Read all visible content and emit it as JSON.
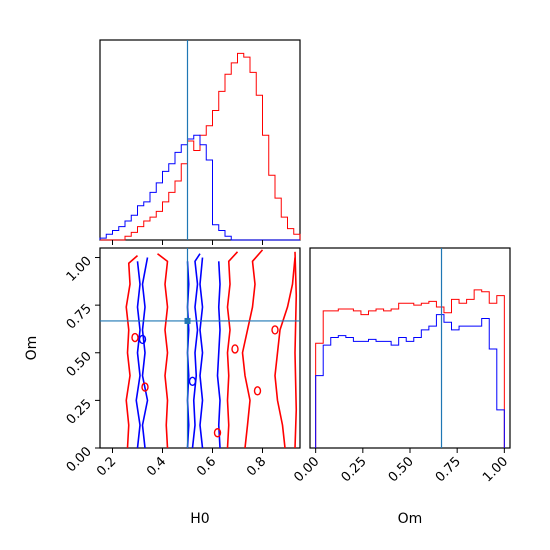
{
  "chart_data": {
    "type": "corner",
    "truth": {
      "H0": 0.5,
      "Om": 0.667
    },
    "colors": {
      "series_a": "#ff0000",
      "series_b": "#0000ff",
      "truth": "#1f77b4"
    },
    "h0_hist": {
      "xlim": [
        0.15,
        0.95
      ],
      "bin_edges": [
        0.15,
        0.175,
        0.2,
        0.225,
        0.25,
        0.275,
        0.3,
        0.325,
        0.35,
        0.375,
        0.4,
        0.425,
        0.45,
        0.475,
        0.5,
        0.525,
        0.55,
        0.575,
        0.6,
        0.625,
        0.65,
        0.675,
        0.7,
        0.725,
        0.75,
        0.775,
        0.8,
        0.825,
        0.85,
        0.875,
        0.9,
        0.925,
        0.95
      ],
      "series": [
        {
          "key": "a",
          "values": [
            0,
            0,
            0,
            0,
            0.02,
            0.04,
            0.07,
            0.1,
            0.12,
            0.15,
            0.2,
            0.25,
            0.31,
            0.4,
            0.52,
            0.47,
            0.55,
            0.6,
            0.68,
            0.78,
            0.87,
            0.93,
            0.98,
            0.96,
            0.88,
            0.76,
            0.55,
            0.34,
            0.22,
            0.12,
            0.06,
            0.03
          ]
        },
        {
          "key": "b",
          "values": [
            0.01,
            0.03,
            0.05,
            0.07,
            0.1,
            0.13,
            0.18,
            0.2,
            0.25,
            0.3,
            0.36,
            0.4,
            0.46,
            0.5,
            0.53,
            0.55,
            0.5,
            0.42,
            0.08,
            0.05,
            0.02,
            0,
            0,
            0,
            0,
            0,
            0,
            0,
            0,
            0,
            0,
            0
          ]
        }
      ]
    },
    "om_hist": {
      "xlim": [
        -0.03,
        1.03
      ],
      "xticks": [
        "0.00",
        "0.25",
        "0.50",
        "0.75",
        "1.00"
      ],
      "bin_edges": [
        0,
        0.04,
        0.08,
        0.12,
        0.16,
        0.2,
        0.24,
        0.28,
        0.32,
        0.36,
        0.4,
        0.44,
        0.48,
        0.52,
        0.56,
        0.6,
        0.64,
        0.68,
        0.72,
        0.76,
        0.8,
        0.84,
        0.88,
        0.92,
        0.96,
        1.0
      ],
      "series": [
        {
          "key": "a",
          "values": [
            0.55,
            0.72,
            0.72,
            0.73,
            0.73,
            0.72,
            0.7,
            0.72,
            0.73,
            0.72,
            0.73,
            0.76,
            0.76,
            0.75,
            0.76,
            0.77,
            0.74,
            0.71,
            0.78,
            0.76,
            0.78,
            0.83,
            0.82,
            0.76,
            0.8
          ]
        },
        {
          "key": "b",
          "values": [
            0.38,
            0.54,
            0.58,
            0.59,
            0.58,
            0.56,
            0.56,
            0.57,
            0.56,
            0.56,
            0.54,
            0.58,
            0.56,
            0.58,
            0.62,
            0.64,
            0.7,
            0.66,
            0.62,
            0.64,
            0.64,
            0.64,
            0.68,
            0.52,
            0.2
          ]
        }
      ]
    },
    "joint": {
      "xlim": [
        0.15,
        0.95
      ],
      "ylim": [
        0.0,
        1.05
      ],
      "xticks": [
        "0.2",
        "0.4",
        "0.6",
        "0.8"
      ],
      "yticks": [
        "0.00",
        "0.25",
        "0.50",
        "0.75",
        "1.00"
      ],
      "contours": [
        {
          "key": "a",
          "points": [
            [
              0.26,
              0.0
            ],
            [
              0.265,
              0.12
            ],
            [
              0.255,
              0.25
            ],
            [
              0.27,
              0.38
            ],
            [
              0.26,
              0.5
            ],
            [
              0.265,
              0.62
            ],
            [
              0.255,
              0.74
            ],
            [
              0.27,
              0.86
            ],
            [
              0.265,
              0.97
            ],
            [
              0.3,
              1.01
            ]
          ]
        },
        {
          "key": "a",
          "points": [
            [
              0.42,
              0.0
            ],
            [
              0.415,
              0.12
            ],
            [
              0.42,
              0.25
            ],
            [
              0.41,
              0.38
            ],
            [
              0.42,
              0.5
            ],
            [
              0.41,
              0.62
            ],
            [
              0.42,
              0.74
            ],
            [
              0.41,
              0.86
            ],
            [
              0.42,
              0.98
            ],
            [
              0.38,
              1.02
            ]
          ]
        },
        {
          "key": "a",
          "points": [
            [
              0.66,
              0.0
            ],
            [
              0.665,
              0.12
            ],
            [
              0.66,
              0.25
            ],
            [
              0.665,
              0.38
            ],
            [
              0.66,
              0.5
            ],
            [
              0.67,
              0.62
            ],
            [
              0.66,
              0.74
            ],
            [
              0.67,
              0.86
            ],
            [
              0.665,
              0.98
            ],
            [
              0.7,
              1.03
            ]
          ]
        },
        {
          "key": "a",
          "points": [
            [
              0.93,
              0.0
            ],
            [
              0.935,
              0.2
            ],
            [
              0.93,
              0.5
            ],
            [
              0.935,
              0.8
            ],
            [
              0.93,
              1.03
            ]
          ]
        },
        {
          "key": "a",
          "points": [
            [
              0.73,
              0.0
            ],
            [
              0.74,
              0.12
            ],
            [
              0.75,
              0.25
            ],
            [
              0.73,
              0.38
            ],
            [
              0.72,
              0.5
            ],
            [
              0.74,
              0.62
            ],
            [
              0.76,
              0.74
            ],
            [
              0.77,
              0.86
            ],
            [
              0.76,
              0.98
            ],
            [
              0.8,
              1.04
            ]
          ]
        },
        {
          "key": "a",
          "points": [
            [
              0.89,
              0.0
            ],
            [
              0.88,
              0.12
            ],
            [
              0.86,
              0.25
            ],
            [
              0.85,
              0.38
            ],
            [
              0.86,
              0.5
            ],
            [
              0.87,
              0.62
            ],
            [
              0.9,
              0.74
            ],
            [
              0.92,
              0.86
            ],
            [
              0.93,
              1.0
            ]
          ]
        },
        {
          "key": "b",
          "points": [
            [
              0.3,
              0.0
            ],
            [
              0.31,
              0.12
            ],
            [
              0.295,
              0.25
            ],
            [
              0.31,
              0.38
            ],
            [
              0.3,
              0.5
            ],
            [
              0.31,
              0.62
            ],
            [
              0.3,
              0.74
            ],
            [
              0.31,
              0.86
            ],
            [
              0.3,
              0.98
            ]
          ]
        },
        {
          "key": "b",
          "points": [
            [
              0.5,
              0.0
            ],
            [
              0.505,
              0.12
            ],
            [
              0.5,
              0.25
            ],
            [
              0.505,
              0.38
            ],
            [
              0.5,
              0.5
            ],
            [
              0.505,
              0.62
            ],
            [
              0.5,
              0.74
            ],
            [
              0.505,
              0.86
            ],
            [
              0.5,
              0.98
            ]
          ]
        },
        {
          "key": "b",
          "points": [
            [
              0.52,
              0.0
            ],
            [
              0.53,
              0.12
            ],
            [
              0.525,
              0.25
            ],
            [
              0.535,
              0.38
            ],
            [
              0.53,
              0.5
            ],
            [
              0.54,
              0.62
            ],
            [
              0.53,
              0.74
            ],
            [
              0.54,
              0.86
            ],
            [
              0.53,
              0.98
            ],
            [
              0.55,
              1.02
            ]
          ]
        },
        {
          "key": "b",
          "points": [
            [
              0.63,
              0.0
            ],
            [
              0.625,
              0.12
            ],
            [
              0.63,
              0.25
            ],
            [
              0.62,
              0.38
            ],
            [
              0.625,
              0.5
            ],
            [
              0.63,
              0.62
            ],
            [
              0.625,
              0.74
            ],
            [
              0.63,
              0.86
            ],
            [
              0.625,
              0.98
            ]
          ]
        },
        {
          "key": "b",
          "points": [
            [
              0.56,
              0.0
            ],
            [
              0.55,
              0.12
            ],
            [
              0.56,
              0.25
            ],
            [
              0.55,
              0.38
            ],
            [
              0.56,
              0.5
            ],
            [
              0.55,
              0.62
            ],
            [
              0.56,
              0.74
            ],
            [
              0.55,
              0.86
            ],
            [
              0.56,
              1.0
            ]
          ]
        },
        {
          "key": "b",
          "points": [
            [
              0.33,
              0.0
            ],
            [
              0.32,
              0.12
            ],
            [
              0.34,
              0.25
            ],
            [
              0.32,
              0.38
            ],
            [
              0.33,
              0.5
            ],
            [
              0.32,
              0.62
            ],
            [
              0.33,
              0.74
            ],
            [
              0.32,
              0.86
            ],
            [
              0.34,
              1.0
            ]
          ]
        }
      ]
    },
    "xlabel_left": "H0",
    "xlabel_right": "Om",
    "ylabel_joint": "Om"
  }
}
